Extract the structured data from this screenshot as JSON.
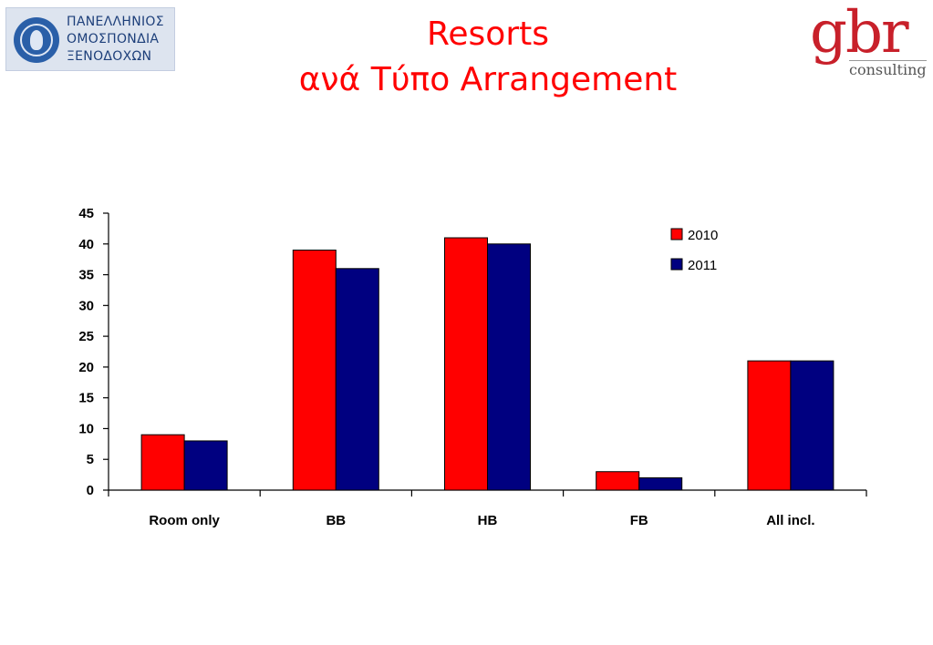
{
  "header": {
    "org_name_lines": [
      "ΠΑΝΕΛΛΗΝΙΟΣ",
      "ΟΜΟΣΠΟΝΔΙΑ",
      "ΞΕΝΟΔΟΧΩΝ"
    ],
    "title_line1": "Resorts",
    "title_line2": "ανά Τύπο Arrangement",
    "brand_mark": "gbr",
    "brand_sub": "consulting"
  },
  "colors": {
    "title": "#ff0000",
    "series_2010": "#ff0000",
    "series_2011": "#000080",
    "brand": "#c8202a"
  },
  "chart_data": {
    "type": "bar",
    "title": "",
    "xlabel": "",
    "ylabel": "",
    "categories": [
      "Room only",
      "BB",
      "HB",
      "FB",
      "All incl."
    ],
    "series": [
      {
        "name": "2010",
        "values": [
          9,
          39,
          41,
          3,
          21
        ],
        "color": "#ff0000"
      },
      {
        "name": "2011",
        "values": [
          8,
          36,
          40,
          2,
          21
        ],
        "color": "#000080"
      }
    ],
    "ylim": [
      0,
      45
    ],
    "yticks": [
      0,
      5,
      10,
      15,
      20,
      25,
      30,
      35,
      40,
      45
    ],
    "grid": false,
    "legend_position": "top-right"
  }
}
